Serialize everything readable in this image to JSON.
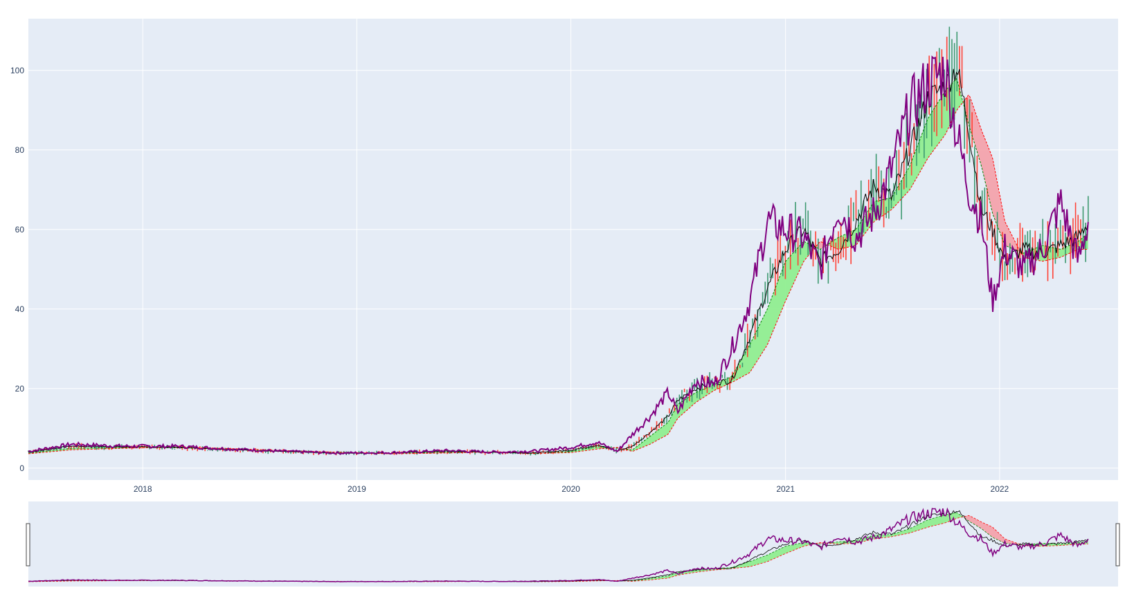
{
  "chart_data": {
    "type": "line",
    "title": "",
    "xlabel": "",
    "ylabel": "",
    "y_ticks": [
      0,
      20,
      40,
      60,
      80,
      100
    ],
    "x_ticks": [
      "2018",
      "2019",
      "2020",
      "2021",
      "2022"
    ],
    "x_range": [
      "2017-06-20",
      "2022-07-22"
    ],
    "y_range": [
      -3,
      113
    ],
    "grid": true,
    "legend": "none",
    "rangeslider": true,
    "colors": {
      "background": "#e5ecf6",
      "purple_line": "#800080",
      "conversion_line": "#000000",
      "increasing": "#3d9970",
      "decreasing": "#ff4136",
      "cloud_bullish": "#90ee90",
      "cloud_bearish": "#f4a0a8",
      "span_a": "#008000",
      "span_b": "#ff0000"
    },
    "series": [
      {
        "name": "",
        "color": "#800080",
        "points": [
          [
            "2017-06-20",
            4.2
          ],
          [
            "2017-09-01",
            6.0
          ],
          [
            "2017-12-01",
            5.5
          ],
          [
            "2018-03-01",
            5.5
          ],
          [
            "2018-06-01",
            4.8
          ],
          [
            "2018-09-01",
            4.2
          ],
          [
            "2018-12-01",
            3.8
          ],
          [
            "2019-03-01",
            3.9
          ],
          [
            "2019-06-01",
            4.4
          ],
          [
            "2019-09-01",
            4.0
          ],
          [
            "2019-11-01",
            4.3
          ],
          [
            "2020-01-01",
            5.2
          ],
          [
            "2020-02-15",
            6.5
          ],
          [
            "2020-03-20",
            4.2
          ],
          [
            "2020-04-15",
            8.5
          ],
          [
            "2020-05-15",
            13.0
          ],
          [
            "2020-06-15",
            19.0
          ],
          [
            "2020-07-01",
            14.0
          ],
          [
            "2020-08-01",
            22.0
          ],
          [
            "2020-09-01",
            21.0
          ],
          [
            "2020-10-01",
            30.0
          ],
          [
            "2020-11-01",
            42.0
          ],
          [
            "2020-12-01",
            62.0
          ],
          [
            "2021-01-01",
            60.0
          ],
          [
            "2021-02-01",
            58.0
          ],
          [
            "2021-03-01",
            50.0
          ],
          [
            "2021-04-01",
            66.0
          ],
          [
            "2021-05-01",
            58.0
          ],
          [
            "2021-06-01",
            64.0
          ],
          [
            "2021-07-01",
            75.0
          ],
          [
            "2021-08-01",
            90.0
          ],
          [
            "2021-09-01",
            97.0
          ],
          [
            "2021-10-01",
            100.0
          ],
          [
            "2021-10-20",
            84.0
          ],
          [
            "2021-11-10",
            70.0
          ],
          [
            "2021-12-01",
            62.0
          ],
          [
            "2021-12-20",
            42.0
          ],
          [
            "2022-01-10",
            55.0
          ],
          [
            "2022-02-10",
            50.0
          ],
          [
            "2022-03-15",
            55.0
          ],
          [
            "2022-04-15",
            67.0
          ],
          [
            "2022-05-15",
            52.0
          ],
          [
            "2022-06-01",
            62.0
          ]
        ]
      },
      {
        "name": "",
        "color": "#000000",
        "points": [
          [
            "2017-06-20",
            4.0
          ],
          [
            "2017-09-01",
            5.5
          ],
          [
            "2017-12-01",
            5.3
          ],
          [
            "2018-03-01",
            5.2
          ],
          [
            "2018-06-01",
            4.6
          ],
          [
            "2018-09-01",
            4.1
          ],
          [
            "2018-12-01",
            3.7
          ],
          [
            "2019-03-01",
            3.8
          ],
          [
            "2019-06-01",
            4.2
          ],
          [
            "2019-09-01",
            3.9
          ],
          [
            "2019-11-01",
            3.8
          ],
          [
            "2020-01-01",
            4.5
          ],
          [
            "2020-02-15",
            5.8
          ],
          [
            "2020-03-20",
            4.3
          ],
          [
            "2020-04-15",
            5.5
          ],
          [
            "2020-05-15",
            9.0
          ],
          [
            "2020-06-15",
            13.0
          ],
          [
            "2020-07-01",
            17.0
          ],
          [
            "2020-08-01",
            20.0
          ],
          [
            "2020-09-01",
            21.5
          ],
          [
            "2020-10-01",
            22.0
          ],
          [
            "2020-11-01",
            33.0
          ],
          [
            "2020-12-01",
            45.0
          ],
          [
            "2021-01-01",
            55.0
          ],
          [
            "2021-02-01",
            60.0
          ],
          [
            "2021-03-01",
            52.0
          ],
          [
            "2021-04-01",
            55.0
          ],
          [
            "2021-05-01",
            62.0
          ],
          [
            "2021-06-01",
            71.0
          ],
          [
            "2021-07-01",
            68.0
          ],
          [
            "2021-08-01",
            80.0
          ],
          [
            "2021-09-01",
            93.0
          ],
          [
            "2021-10-01",
            96.0
          ],
          [
            "2021-10-20",
            101.0
          ],
          [
            "2021-11-10",
            85.0
          ],
          [
            "2021-12-01",
            65.0
          ],
          [
            "2021-12-20",
            60.0
          ],
          [
            "2022-01-10",
            52.0
          ],
          [
            "2022-02-10",
            55.0
          ],
          [
            "2022-03-15",
            54.0
          ],
          [
            "2022-04-15",
            56.0
          ],
          [
            "2022-05-15",
            58.0
          ],
          [
            "2022-06-01",
            62.0
          ]
        ]
      },
      {
        "name": "",
        "color": "#008000",
        "dash": true,
        "points": [
          [
            "2017-06-20",
            3.8
          ],
          [
            "2017-09-01",
            5.0
          ],
          [
            "2017-12-01",
            5.2
          ],
          [
            "2018-03-01",
            5.1
          ],
          [
            "2018-06-01",
            4.7
          ],
          [
            "2018-09-01",
            4.2
          ],
          [
            "2018-12-01",
            3.8
          ],
          [
            "2019-03-01",
            3.7
          ],
          [
            "2019-06-01",
            4.0
          ],
          [
            "2019-09-01",
            4.0
          ],
          [
            "2019-11-01",
            3.6
          ],
          [
            "2020-01-01",
            4.2
          ],
          [
            "2020-02-15",
            5.4
          ],
          [
            "2020-03-20",
            5.0
          ],
          [
            "2020-04-15",
            4.6
          ],
          [
            "2020-05-15",
            8.0
          ],
          [
            "2020-06-15",
            11.5
          ],
          [
            "2020-07-01",
            16.0
          ],
          [
            "2020-08-01",
            19.0
          ],
          [
            "2020-09-01",
            21.0
          ],
          [
            "2020-10-01",
            23.0
          ],
          [
            "2020-11-01",
            31.0
          ],
          [
            "2020-12-01",
            40.0
          ],
          [
            "2021-01-01",
            52.0
          ],
          [
            "2021-02-01",
            57.0
          ],
          [
            "2021-03-01",
            55.0
          ],
          [
            "2021-04-01",
            58.0
          ],
          [
            "2021-05-01",
            60.0
          ],
          [
            "2021-06-01",
            67.0
          ],
          [
            "2021-07-01",
            68.0
          ],
          [
            "2021-08-01",
            76.0
          ],
          [
            "2021-09-01",
            88.0
          ],
          [
            "2021-10-01",
            95.0
          ],
          [
            "2021-10-20",
            98.0
          ],
          [
            "2021-11-10",
            86.0
          ],
          [
            "2021-12-01",
            76.0
          ],
          [
            "2021-12-20",
            64.0
          ],
          [
            "2022-01-10",
            56.0
          ],
          [
            "2022-02-10",
            54.0
          ],
          [
            "2022-03-15",
            56.0
          ],
          [
            "2022-04-15",
            55.0
          ],
          [
            "2022-05-15",
            57.0
          ],
          [
            "2022-06-01",
            59.0
          ]
        ]
      },
      {
        "name": "",
        "color": "#ff0000",
        "dash": true,
        "points": [
          [
            "2017-06-20",
            3.6
          ],
          [
            "2017-09-01",
            4.6
          ],
          [
            "2017-12-01",
            5.0
          ],
          [
            "2018-03-01",
            5.3
          ],
          [
            "2018-06-01",
            4.9
          ],
          [
            "2018-09-01",
            4.4
          ],
          [
            "2018-12-01",
            4.0
          ],
          [
            "2019-03-01",
            3.6
          ],
          [
            "2019-06-01",
            3.8
          ],
          [
            "2019-09-01",
            4.1
          ],
          [
            "2019-11-01",
            3.7
          ],
          [
            "2020-01-01",
            3.9
          ],
          [
            "2020-02-15",
            4.8
          ],
          [
            "2020-03-20",
            5.2
          ],
          [
            "2020-04-15",
            4.2
          ],
          [
            "2020-05-15",
            6.0
          ],
          [
            "2020-06-15",
            8.5
          ],
          [
            "2020-07-01",
            12.5
          ],
          [
            "2020-08-01",
            16.5
          ],
          [
            "2020-09-01",
            19.5
          ],
          [
            "2020-10-01",
            21.5
          ],
          [
            "2020-11-01",
            24.0
          ],
          [
            "2020-12-01",
            31.0
          ],
          [
            "2021-01-01",
            42.0
          ],
          [
            "2021-02-01",
            52.0
          ],
          [
            "2021-03-01",
            57.0
          ],
          [
            "2021-04-01",
            55.0
          ],
          [
            "2021-05-01",
            56.0
          ],
          [
            "2021-06-01",
            62.0
          ],
          [
            "2021-07-01",
            65.0
          ],
          [
            "2021-08-01",
            70.0
          ],
          [
            "2021-09-01",
            78.0
          ],
          [
            "2021-10-01",
            84.0
          ],
          [
            "2021-10-20",
            90.0
          ],
          [
            "2021-11-10",
            94.0
          ],
          [
            "2021-12-01",
            85.0
          ],
          [
            "2021-12-20",
            78.0
          ],
          [
            "2022-01-10",
            62.0
          ],
          [
            "2022-02-10",
            53.0
          ],
          [
            "2022-03-15",
            52.0
          ],
          [
            "2022-04-15",
            53.0
          ],
          [
            "2022-05-15",
            55.0
          ],
          [
            "2022-06-01",
            55.0
          ]
        ]
      }
    ]
  }
}
